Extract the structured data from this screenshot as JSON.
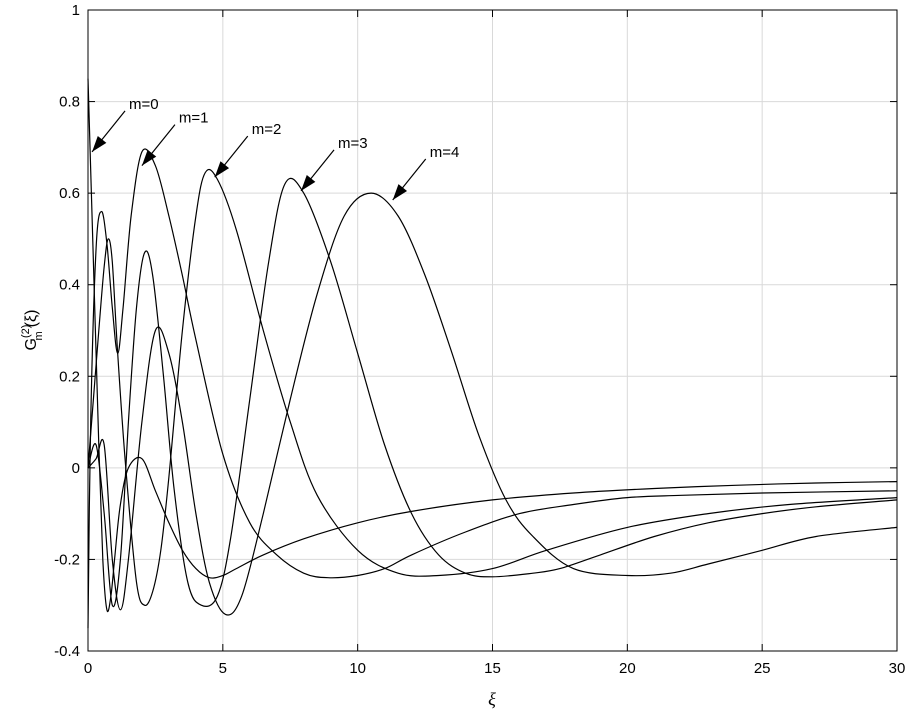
{
  "chart_data": {
    "type": "line",
    "title": "",
    "xlabel": "ξ",
    "ylabel": {
      "base": "G",
      "superscript": "(2)",
      "subscript": "m",
      "arg": "(ξ)"
    },
    "xlim": [
      0,
      30
    ],
    "ylim": [
      -0.4,
      1
    ],
    "xticks": [
      0,
      5,
      10,
      15,
      20,
      25,
      30
    ],
    "xtick_labels": [
      "0",
      "5",
      "10",
      "15",
      "20",
      "25",
      "30"
    ],
    "yticks": [
      -0.4,
      -0.2,
      0,
      0.2,
      0.4,
      0.6,
      0.8,
      1
    ],
    "ytick_labels": [
      "-0.4",
      "-0.2",
      "0",
      "0.2",
      "0.4",
      "0.6",
      "0.8",
      "1"
    ],
    "grid": true,
    "line_color": "#000000",
    "grid_color": "#d9d9d9",
    "series": [
      {
        "name": "m=0",
        "x": [
          0,
          0.2,
          0.4,
          0.55,
          0.7,
          0.85,
          1.0,
          1.2,
          1.5,
          2.0,
          2.5,
          3.0,
          3.5,
          4.0,
          4.5,
          5.0,
          5.5,
          6.5,
          8,
          10,
          12,
          15,
          18,
          21,
          24,
          27,
          30
        ],
        "y": [
          0.85,
          0.45,
          0.05,
          -0.2,
          -0.31,
          -0.28,
          -0.19,
          -0.08,
          0.0,
          0.02,
          -0.05,
          -0.12,
          -0.18,
          -0.22,
          -0.24,
          -0.235,
          -0.22,
          -0.19,
          -0.155,
          -0.12,
          -0.095,
          -0.07,
          -0.055,
          -0.045,
          -0.038,
          -0.033,
          -0.03
        ]
      },
      {
        "name": "m=1",
        "x": [
          0,
          0.1,
          0.3,
          0.5,
          0.7,
          0.9,
          1.1,
          1.3,
          1.6,
          2.0,
          2.5,
          3.0,
          3.5,
          4.0,
          5.0,
          6.0,
          7.0,
          8.0,
          8.9,
          10,
          11,
          12,
          14,
          16,
          18,
          20,
          22,
          25,
          30
        ],
        "y": [
          -0.35,
          0.1,
          0.48,
          0.56,
          0.49,
          0.35,
          0.25,
          0.35,
          0.55,
          0.69,
          0.66,
          0.55,
          0.42,
          0.28,
          0.03,
          -0.12,
          -0.19,
          -0.23,
          -0.24,
          -0.235,
          -0.22,
          -0.19,
          -0.14,
          -0.1,
          -0.08,
          -0.065,
          -0.06,
          -0.055,
          -0.05
        ]
      },
      {
        "name": "m=2",
        "x": [
          0,
          0.2,
          0.4,
          0.6,
          0.75,
          0.9,
          1.1,
          1.4,
          1.8,
          2.1,
          2.4,
          2.7,
          3.0,
          3.5,
          4.0,
          4.35,
          4.8,
          5.5,
          6.5,
          7.5,
          8.5,
          10,
          11.5,
          13,
          15,
          17,
          20,
          23,
          26,
          30
        ],
        "y": [
          0.0,
          0.15,
          0.3,
          0.44,
          0.5,
          0.45,
          0.25,
          0.0,
          -0.25,
          -0.3,
          -0.27,
          -0.18,
          -0.02,
          0.3,
          0.55,
          0.645,
          0.63,
          0.52,
          0.3,
          0.1,
          -0.06,
          -0.18,
          -0.23,
          -0.235,
          -0.22,
          -0.18,
          -0.13,
          -0.1,
          -0.08,
          -0.065
        ]
      },
      {
        "name": "m=3",
        "x": [
          0,
          0.3,
          0.6,
          0.9,
          1.2,
          1.5,
          1.8,
          2.1,
          2.4,
          2.8,
          3.2,
          3.7,
          4.2,
          4.8,
          5.3,
          6.0,
          6.7,
          7.3,
          8.0,
          9.0,
          10.0,
          11.0,
          12.0,
          13.0,
          14.0,
          15.0,
          16.5,
          17.5,
          19,
          21,
          23,
          25,
          27,
          30
        ],
        "y": [
          0.0,
          0.05,
          -0.1,
          -0.3,
          -0.2,
          0.1,
          0.35,
          0.47,
          0.42,
          0.2,
          -0.05,
          -0.25,
          -0.3,
          -0.28,
          -0.15,
          0.15,
          0.45,
          0.62,
          0.6,
          0.45,
          0.25,
          0.05,
          -0.1,
          -0.19,
          -0.23,
          -0.238,
          -0.23,
          -0.22,
          -0.19,
          -0.15,
          -0.12,
          -0.1,
          -0.085,
          -0.07
        ]
      },
      {
        "name": "m=4",
        "x": [
          0,
          0.3,
          0.6,
          0.9,
          1.2,
          1.5,
          2.0,
          2.5,
          3.0,
          3.5,
          4.0,
          4.5,
          5.1,
          5.7,
          6.5,
          7.5,
          8.5,
          9.5,
          10.5,
          11.5,
          12.5,
          13.5,
          14.5,
          15.5,
          16.5,
          18,
          20,
          21.6,
          23,
          25,
          27,
          30
        ],
        "y": [
          0.0,
          0.02,
          0.05,
          -0.2,
          -0.31,
          -0.2,
          0.1,
          0.3,
          0.25,
          0.1,
          -0.1,
          -0.25,
          -0.32,
          -0.28,
          -0.1,
          0.15,
          0.38,
          0.55,
          0.6,
          0.55,
          0.42,
          0.25,
          0.07,
          -0.07,
          -0.15,
          -0.22,
          -0.235,
          -0.23,
          -0.21,
          -0.18,
          -0.15,
          -0.13
        ]
      }
    ],
    "annotations": [
      {
        "text": "m=0",
        "arrow_to": [
          0.15,
          0.69
        ]
      },
      {
        "text": "m=1",
        "arrow_to": [
          2.0,
          0.66
        ]
      },
      {
        "text": "m=2",
        "arrow_to": [
          4.7,
          0.635
        ]
      },
      {
        "text": "m=3",
        "arrow_to": [
          7.9,
          0.605
        ]
      },
      {
        "text": "m=4",
        "arrow_to": [
          11.3,
          0.585
        ]
      }
    ]
  }
}
